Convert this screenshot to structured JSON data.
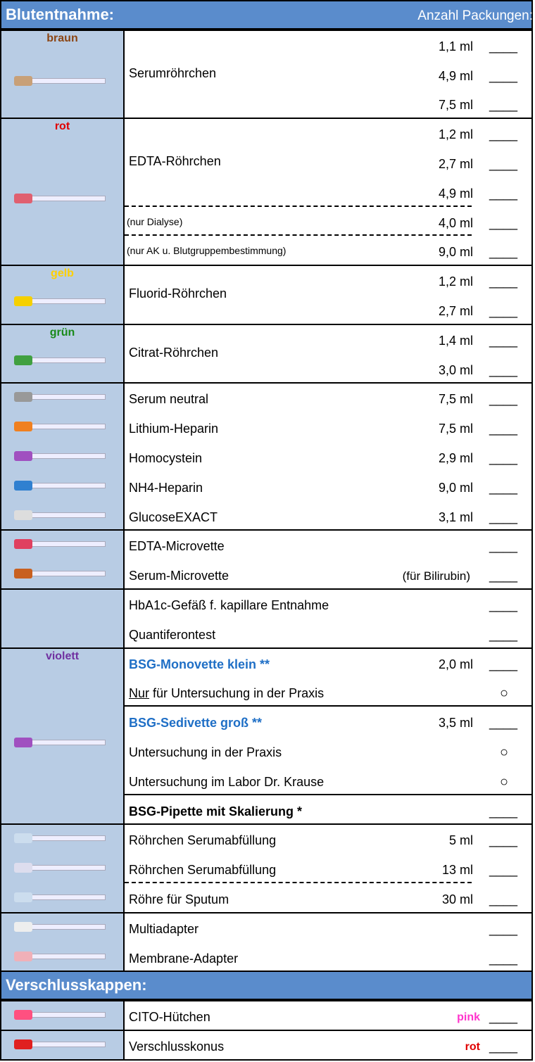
{
  "sections": [
    {
      "title": "Blutentnahme:",
      "column_title": "Anzahl Packungen:",
      "groups": [
        {
          "label": "braun",
          "label_color": "#8b4513",
          "name": "Serumröhrchen",
          "rows": [
            {
              "volume": "1,1 ml",
              "count": "____"
            },
            {
              "volume": "4,9 ml",
              "count": "____"
            },
            {
              "volume": "7,5 ml",
              "count": "____"
            }
          ]
        },
        {
          "label": "rot",
          "label_color": "#e00000",
          "name": "EDTA-Röhrchen",
          "rows": [
            {
              "volume": "1,2 ml",
              "count": "____"
            },
            {
              "volume": "2,7 ml",
              "count": "____"
            },
            {
              "volume": "4,9 ml",
              "count": "____",
              "divider": "dashed"
            },
            {
              "note": "(nur Dialyse)",
              "volume": "4,0 ml",
              "count": "____",
              "divider": "dashed"
            },
            {
              "note": "(nur AK u. Blutgruppembestimmung)",
              "volume": "9,0 ml",
              "count": "____"
            }
          ]
        },
        {
          "label": "gelb",
          "label_color": "#ffd000",
          "name": "Fluorid-Röhrchen",
          "rows": [
            {
              "volume": "1,2 ml",
              "count": "____"
            },
            {
              "volume": "2,7 ml",
              "count": "____"
            }
          ]
        },
        {
          "label": "grün",
          "label_color": "#1a8a1a",
          "name": "Citrat-Röhrchen",
          "rows": [
            {
              "volume": "1,4 ml",
              "count": "____"
            },
            {
              "volume": "3,0 ml",
              "count": "____"
            }
          ]
        },
        {
          "rows": [
            {
              "name": "Serum neutral",
              "volume": "7,5 ml",
              "count": "____"
            },
            {
              "name": "Lithium-Heparin",
              "volume": "7,5 ml",
              "count": "____"
            },
            {
              "name": "Homocystein",
              "volume": "2,9 ml",
              "count": "____"
            },
            {
              "name": "NH4-Heparin",
              "volume": "9,0 ml",
              "count": "____"
            },
            {
              "name": "GlucoseEXACT",
              "volume": "3,1 ml",
              "count": "____"
            }
          ]
        },
        {
          "rows": [
            {
              "name": "EDTA-Microvette",
              "count": "____"
            },
            {
              "name": "Serum-Microvette",
              "comment": "(für Bilirubin)",
              "count": "____"
            }
          ]
        },
        {
          "rows": [
            {
              "name": "HbA1c-Gefäß f. kapillare Entnahme",
              "count": "____"
            },
            {
              "name": "Quantiferontest",
              "count": "____"
            }
          ]
        },
        {
          "label": "violett",
          "label_color": "#7030a0",
          "rows": [
            {
              "name": "BSG-Monovette klein **",
              "style": "bold-blue",
              "volume": "2,0 ml",
              "count": "____"
            },
            {
              "prefix": "Nur",
              "name": " für Untersuchung in der Praxis",
              "mark": "○",
              "divider": "solid"
            },
            {
              "name": "BSG-Sedivette groß **",
              "style": "bold-blue",
              "volume": "3,5 ml",
              "count": "____"
            },
            {
              "name": "Untersuchung in der Praxis",
              "mark": "○"
            },
            {
              "name": "Untersuchung im Labor Dr. Krause",
              "mark": "○",
              "divider": "solid"
            },
            {
              "name": "BSG-Pipette mit Skalierung *",
              "style": "bold",
              "count": "____"
            }
          ]
        },
        {
          "rows": [
            {
              "name": "Röhrchen Serumabfüllung",
              "volume": "5 ml",
              "count": "____"
            },
            {
              "name": "Röhrchen Serumabfüllung",
              "volume": "13 ml",
              "count": "____",
              "divider": "dashed"
            },
            {
              "name": "Röhre für Sputum",
              "volume": "30 ml",
              "count": "____"
            }
          ]
        },
        {
          "rows": [
            {
              "name": "Multiadapter",
              "count": "____"
            },
            {
              "name": "Membrane-Adapter",
              "count": "____"
            }
          ]
        }
      ]
    },
    {
      "title": "Verschlusskappen:",
      "groups": [
        {
          "rows": [
            {
              "name": "CITO-Hütchen",
              "comment": "pink",
              "comment_color": "#ff33cc",
              "count": "____"
            }
          ]
        },
        {
          "rows": [
            {
              "name": "Verschlusskonus",
              "comment": "rot",
              "comment_color": "#e00000",
              "count": "____"
            }
          ]
        }
      ]
    }
  ]
}
